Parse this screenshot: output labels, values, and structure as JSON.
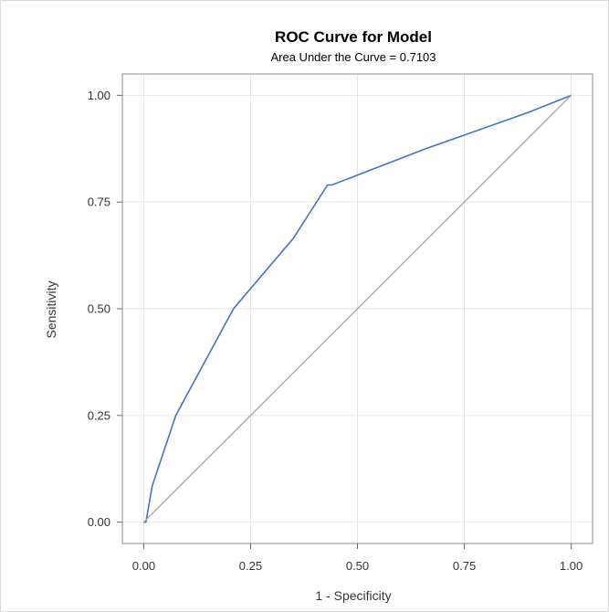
{
  "chart_data": {
    "type": "line",
    "title": "ROC Curve for Model",
    "subtitle": "Area Under the Curve = 0.7103",
    "xlabel": "1 - Specificity",
    "ylabel": "Sensitivity",
    "xlim": [
      -0.05,
      1.05
    ],
    "ylim": [
      -0.05,
      1.05
    ],
    "x_ticks": [
      "0.00",
      "0.25",
      "0.50",
      "0.75",
      "1.00"
    ],
    "y_ticks": [
      "0.00",
      "0.25",
      "0.50",
      "0.75",
      "1.00"
    ],
    "grid": true,
    "series": [
      {
        "color": "#4472c4",
        "x": [
          0.0,
          0.005,
          0.02,
          0.075,
          0.21,
          0.35,
          0.43,
          0.44,
          0.66,
          0.9,
          1.0
        ],
        "y": [
          0.0,
          0.0,
          0.085,
          0.25,
          0.5,
          0.665,
          0.79,
          0.79,
          0.875,
          0.96,
          1.0
        ]
      },
      {
        "color": "#aaaaaa",
        "x": [
          0.0,
          1.0
        ],
        "y": [
          0.0,
          1.0
        ]
      }
    ]
  }
}
